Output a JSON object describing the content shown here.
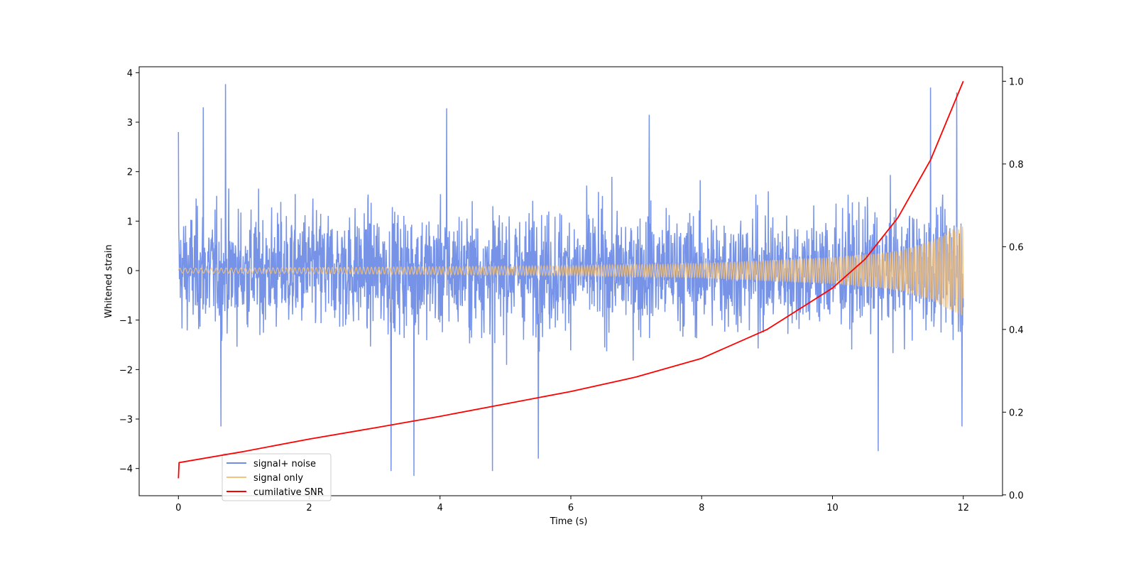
{
  "chart_data": {
    "type": "line",
    "xlabel": "Time (s)",
    "ylabel": "Whitened strain",
    "ylabel_right": "",
    "xlim": [
      -0.6,
      12.6
    ],
    "ylim": [
      -4.55,
      4.12
    ],
    "ylim_right": [
      -0.002,
      1.035
    ],
    "xticks": [
      0,
      2,
      4,
      6,
      8,
      10,
      12
    ],
    "xtick_labels": [
      "0",
      "2",
      "4",
      "6",
      "8",
      "10",
      "12"
    ],
    "yticks": [
      -4,
      -3,
      -2,
      -1,
      0,
      1,
      2,
      3,
      4
    ],
    "ytick_labels": [
      "−4",
      "−3",
      "−2",
      "−1",
      "0",
      "1",
      "2",
      "3",
      "4"
    ],
    "yticks_right": [
      0.0,
      0.2,
      0.4,
      0.6,
      0.8,
      1.0
    ],
    "ytick_right_labels": [
      "0.0",
      "0.2",
      "0.4",
      "0.6",
      "0.8",
      "1.0"
    ],
    "grid": false,
    "legend_placement": "lower-left",
    "series": [
      {
        "name": "signal+ noise",
        "axis": "left",
        "color": "#6f8de6",
        "description_of_values": "noisy oscillation",
        "x_range": [
          0,
          12
        ],
        "envelope_typical": [
          -1.6,
          1.8
        ],
        "extremes": [
          {
            "x": 0.72,
            "y": 3.77
          },
          {
            "x": 0.0,
            "y": 2.8
          },
          {
            "x": 0.38,
            "y": 3.3
          },
          {
            "x": 4.1,
            "y": 3.28
          },
          {
            "x": 7.2,
            "y": 3.15
          },
          {
            "x": 11.5,
            "y": 3.7
          },
          {
            "x": 11.9,
            "y": 3.6
          },
          {
            "x": 3.25,
            "y": -4.05
          },
          {
            "x": 3.6,
            "y": -4.15
          },
          {
            "x": 4.8,
            "y": -4.05
          },
          {
            "x": 5.5,
            "y": -3.8
          },
          {
            "x": 10.7,
            "y": -3.65
          },
          {
            "x": 0.65,
            "y": -3.15
          },
          {
            "x": 11.98,
            "y": -3.15
          }
        ]
      },
      {
        "name": "signal only",
        "axis": "left",
        "color": "#f5c27a",
        "x_range": [
          0,
          12
        ],
        "amplitude_at_x": [
          [
            0,
            0.05
          ],
          [
            2,
            0.06
          ],
          [
            4,
            0.08
          ],
          [
            6,
            0.1
          ],
          [
            8,
            0.15
          ],
          [
            10,
            0.27
          ],
          [
            11,
            0.4
          ],
          [
            11.5,
            0.6
          ],
          [
            12,
            0.95
          ]
        ]
      },
      {
        "name": "cumilative SNR",
        "axis": "right",
        "color": "#ff0000",
        "x": [
          0,
          0.01,
          1,
          2,
          3,
          4,
          5,
          6,
          7,
          8,
          9,
          10,
          10.5,
          11,
          11.5,
          12
        ],
        "y": [
          0.04,
          0.078,
          0.105,
          0.135,
          0.162,
          0.19,
          0.22,
          0.25,
          0.285,
          0.33,
          0.4,
          0.5,
          0.57,
          0.67,
          0.81,
          1.0
        ]
      }
    ]
  }
}
